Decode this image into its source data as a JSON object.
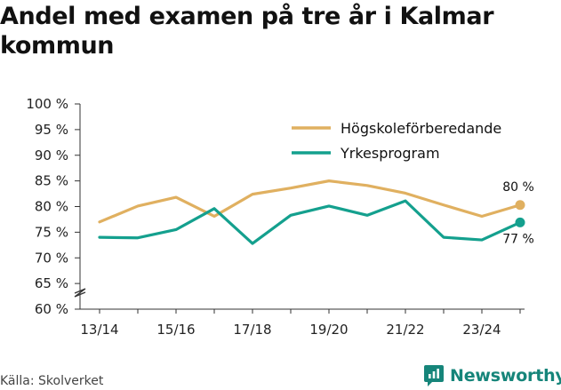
{
  "title": "Andel med examen på tre år i Kalmar kommun",
  "source": "Källa: Skolverket",
  "brand": {
    "name": "Newsworthy",
    "icon": "newsworthy-logo-icon",
    "color": "#16857a"
  },
  "chart_data": {
    "type": "line",
    "title": "Andel med examen på tre år i Kalmar kommun",
    "xlabel": "",
    "ylabel": "",
    "x": [
      "13/14",
      "14/15",
      "15/16",
      "16/17",
      "17/18",
      "18/19",
      "19/20",
      "20/21",
      "21/22",
      "22/23",
      "23/24",
      "24/25"
    ],
    "x_tick_labels": [
      "13/14",
      "15/16",
      "17/18",
      "19/20",
      "21/22",
      "23/24"
    ],
    "y_ticks": [
      60,
      65,
      70,
      75,
      80,
      85,
      90,
      95,
      100
    ],
    "y_tick_labels": [
      "60 %",
      "65 %",
      "70 %",
      "75 %",
      "80 %",
      "85 %",
      "90 %",
      "95 %",
      "100 %"
    ],
    "ylim": [
      60,
      100
    ],
    "y_axis_break": true,
    "grid": false,
    "legend_position": "top-right",
    "series": [
      {
        "name": "Högskoleförberedande",
        "color": "#e0b060",
        "values": [
          77,
          80.1,
          81.8,
          78.1,
          82.4,
          83.6,
          85,
          84.1,
          82.6,
          80.3,
          78.1,
          80.3
        ],
        "end_label": "80 %"
      },
      {
        "name": "Yrkesprogram",
        "color": "#14a08e",
        "values": [
          74,
          73.9,
          75.5,
          79.6,
          72.8,
          78.3,
          80.1,
          78.3,
          81.1,
          74,
          73.5,
          76.9
        ],
        "end_label": "77 %"
      }
    ]
  }
}
